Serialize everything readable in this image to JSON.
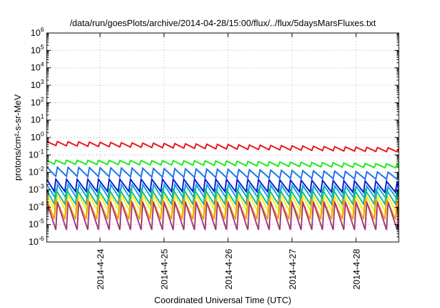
{
  "chart_data": {
    "type": "line",
    "title": "/data/run/goesPlots/archive/2014-04-28/15:00/flux/../flux/5daysMarsFluxes.txt",
    "xlabel": "Coordinated Universal Time (UTC)",
    "ylabel": "protons/cm²-s-sr-MeV",
    "yscale": "log",
    "ylim": [
      1e-06,
      1000000.0
    ],
    "y_tick_exponents": [
      -6,
      -5,
      -4,
      -3,
      -2,
      -1,
      0,
      1,
      2,
      3,
      4,
      5,
      6
    ],
    "xlim": [
      "2014-04-23T04:00",
      "2014-04-28T16:00"
    ],
    "x_ticks": [
      {
        "value": "2014-04-24T00:00",
        "label": "2014-4-24"
      },
      {
        "value": "2014-04-25T00:00",
        "label": "2014-4-25"
      },
      {
        "value": "2014-04-26T00:00",
        "label": "2014-4-26"
      },
      {
        "value": "2014-04-27T00:00",
        "label": "2014-4-27"
      },
      {
        "value": "2014-04-28T00:00",
        "label": "2014-4-28"
      }
    ],
    "grid": true,
    "legend": "none",
    "pattern": "sawtooth, period about 4 hours",
    "series": [
      {
        "color": "#e8141a",
        "peak": [
          0.6,
          0.4,
          0.25
        ],
        "trough": [
          0.35,
          0.22,
          0.15
        ]
      },
      {
        "color": "#1be81b",
        "peak": [
          0.05,
          0.045,
          0.03
        ],
        "trough": [
          0.03,
          0.025,
          0.018
        ]
      },
      {
        "color": "#1a74e8",
        "peak": [
          0.02,
          0.015,
          0.01
        ],
        "trough": [
          0.006,
          0.005,
          0.004
        ]
      },
      {
        "color": "#0a1ad8",
        "peak": [
          0.004,
          0.004,
          0.003
        ],
        "trough": [
          0.0008,
          0.0008,
          0.0007
        ]
      },
      {
        "color": "#00a8d8",
        "peak": [
          0.002,
          0.002,
          0.0015
        ],
        "trough": [
          0.0003,
          0.0003,
          0.0003
        ]
      },
      {
        "color": "#1ab89a",
        "peak": [
          0.001,
          0.001,
          0.001
        ],
        "trough": [
          0.00015,
          0.00015,
          0.00015
        ]
      },
      {
        "color": "#f5f515",
        "peak": [
          0.0005,
          0.0005,
          0.0004
        ],
        "trough": [
          5e-05,
          5e-05,
          4e-05
        ]
      },
      {
        "color": "#f5a000",
        "peak": [
          0.0003,
          0.0003,
          0.0003
        ],
        "trough": [
          2e-05,
          2e-05,
          2e-05
        ]
      },
      {
        "color": "#a8387a",
        "peak": [
          0.0002,
          0.0002,
          0.0002
        ],
        "trough": [
          5e-06,
          5e-06,
          5e-06
        ]
      }
    ]
  }
}
